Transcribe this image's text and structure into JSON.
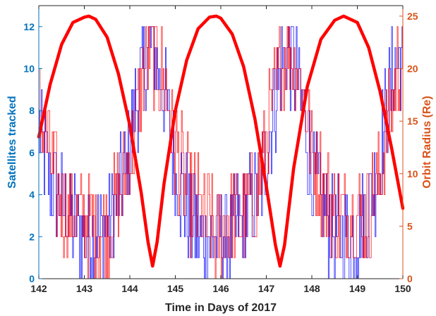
{
  "chart_data": {
    "type": "line",
    "xlabel": "Time in Days of 2017",
    "ylabel_left": "Satellites tracked",
    "ylabel_right": "Orbit Radius (Re)",
    "xlim": [
      142,
      150
    ],
    "ylim_left": [
      0,
      13
    ],
    "ylim_right": [
      0,
      26
    ],
    "x_ticks": [
      142,
      143,
      144,
      145,
      146,
      147,
      148,
      149,
      150
    ],
    "y_ticks_left": [
      0,
      2,
      4,
      6,
      8,
      10,
      12
    ],
    "y_ticks_right": [
      0,
      5,
      10,
      15,
      20,
      25
    ],
    "grid": false,
    "colors": {
      "left_axis": "#0072bd",
      "right_axis": "#d95319",
      "gps_series": "#0000ff",
      "galileo_series": "#ff0000",
      "orbit_series": "#ff0000"
    },
    "series": [
      {
        "axis": "right",
        "x": [
          142.0,
          142.25,
          142.5,
          142.75,
          143.0,
          143.1,
          143.25,
          143.5,
          143.75,
          144.0,
          144.25,
          144.4,
          144.5,
          144.6,
          144.75,
          145.0,
          145.25,
          145.5,
          145.75,
          145.9,
          146.0,
          146.25,
          146.5,
          146.75,
          147.0,
          147.2,
          147.3,
          147.4,
          147.6,
          147.9,
          148.2,
          148.5,
          148.7,
          149.0,
          149.25,
          149.5,
          149.75,
          150.0
        ],
        "values": [
          13.5,
          18.5,
          22.3,
          24.4,
          24.9,
          25.0,
          24.7,
          23.0,
          19.5,
          14.6,
          8.2,
          3.5,
          1.2,
          3.5,
          9.0,
          16.0,
          20.8,
          23.8,
          24.9,
          25.0,
          24.8,
          23.3,
          20.2,
          15.2,
          8.8,
          3.2,
          1.2,
          3.2,
          10.5,
          18.3,
          22.8,
          24.6,
          25.0,
          24.4,
          22.0,
          17.8,
          12.5,
          6.7
        ]
      },
      {
        "axis": "left",
        "x": [
          142.0,
          142.2,
          142.4,
          142.7,
          143.0,
          143.3,
          143.6,
          143.9,
          144.1,
          144.3,
          144.5,
          144.8,
          145.0,
          145.3,
          145.6,
          145.9,
          146.2,
          146.5,
          146.8,
          147.0,
          147.3,
          147.5,
          147.8,
          148.0,
          148.3,
          148.6,
          148.9,
          149.2,
          149.5,
          149.8,
          150.0
        ],
        "values": [
          7,
          5,
          4,
          3,
          2,
          2,
          3,
          5,
          8,
          10,
          11,
          8,
          5,
          3,
          2,
          2,
          2,
          3,
          4,
          6,
          10,
          11,
          8,
          5,
          3,
          2,
          2,
          3,
          6,
          10,
          11
        ]
      },
      {
        "axis": "left",
        "x": [
          142.0,
          142.2,
          142.4,
          142.7,
          143.0,
          143.3,
          143.6,
          143.9,
          144.1,
          144.3,
          144.5,
          144.8,
          145.0,
          145.3,
          145.6,
          145.9,
          146.2,
          146.5,
          146.8,
          147.0,
          147.3,
          147.5,
          147.8,
          148.0,
          148.3,
          148.6,
          148.9,
          149.2,
          149.5,
          149.8,
          150.0
        ],
        "values": [
          8,
          6,
          4,
          3,
          3,
          2,
          3,
          5,
          7,
          10,
          11,
          9,
          6,
          4,
          3,
          2,
          3,
          3,
          4,
          7,
          10,
          11,
          9,
          6,
          4,
          3,
          3,
          3,
          5,
          9,
          11
        ]
      }
    ]
  }
}
